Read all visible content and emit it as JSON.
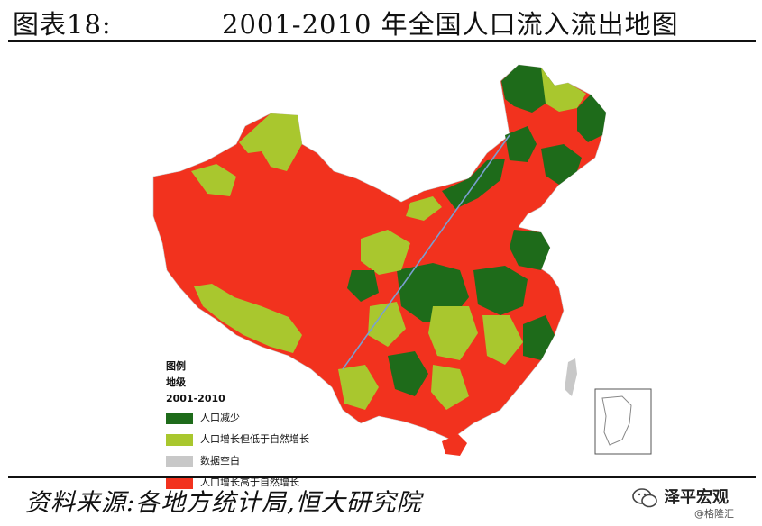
{
  "header": {
    "figure_number": "图表18:",
    "title": "2001-2010 年全国人口流入流出地图"
  },
  "legend": {
    "title_line1": "图例",
    "title_line2": "地级",
    "title_line3": "2001-2010",
    "items": [
      {
        "label": "人口减少",
        "color": "#1e6b1a"
      },
      {
        "label": "人口增长但低于自然增长",
        "color": "#a9c72e"
      },
      {
        "label": "数据空白",
        "color": "#c8c8c8"
      },
      {
        "label": "人口增长高于自然增长",
        "color": "#f2321e"
      }
    ]
  },
  "map_colors": {
    "decrease": "#1e6b1a",
    "below_natural": "#a9c72e",
    "no_data": "#c8c8c8",
    "above_natural": "#f2321e",
    "hu_line": "#7a9fd0"
  },
  "footer": {
    "source": "资料来源:各地方统计局,恒大研究院",
    "brand_name": "泽平宏观",
    "brand_handle": "@格隆汇",
    "brand_icon": "wechat-icon"
  }
}
